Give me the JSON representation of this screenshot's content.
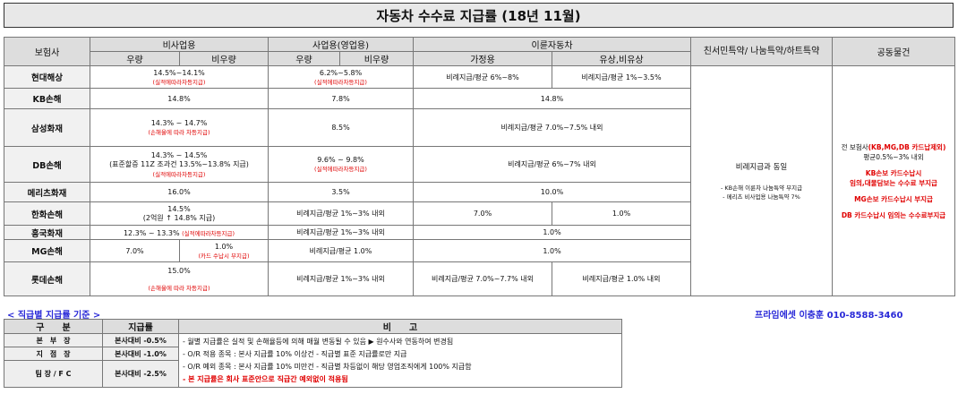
{
  "title": "자동차 수수료 지급률 (18년 11월)",
  "header": {
    "insurer": "보험사",
    "noncommercial": "비사업용",
    "commercial": "사업용(영업용)",
    "twowheel": "이륜자동차",
    "friendly": "친서민특약/ 나눔특약/하트특약",
    "joint": "공동물건",
    "sub": {
      "nc_good": "우량",
      "nc_bad": "비우량",
      "c_good": "우량",
      "c_bad": "비우량",
      "home": "가정용",
      "paid": "유상,비유상"
    }
  },
  "rows": {
    "hyundai": {
      "name": "현대해상",
      "nc": "14.5%~14.1%",
      "nc_note": "(실적에따라차등지급)",
      "c": "6.2%~5.8%",
      "c_note": "(실적에따라차등지급)",
      "home": "비례지급/평균 6%~8%",
      "paid": "비례지급/평균 1%~3.5%"
    },
    "kb": {
      "name": "KB손해",
      "nc": "14.8%",
      "c": "7.8%",
      "tw": "14.8%"
    },
    "samsung": {
      "name": "삼성화재",
      "nc": "14.3% ~ 14.7%",
      "nc_note": "(손해율에 따라 차등지급)",
      "c": "8.5%",
      "tw": "비례지급/평균 7.0%~7.5% 내외"
    },
    "db": {
      "name": "DB손해",
      "nc1": "14.3% ~ 14.5%",
      "nc2": "(표준할증 11Z 조과건 13.5%~13.8% 지급)",
      "nc_note": "(실적에따라차등지급)",
      "c": "9.6% ~ 9.8%",
      "c_note": "(실적에따라차등지급)",
      "tw": "비례지급/평균 6%~7% 내외"
    },
    "meritz": {
      "name": "메리츠화재",
      "nc": "16.0%",
      "c": "3.5%",
      "tw": "10.0%"
    },
    "hanwha": {
      "name": "한화손해",
      "nc1": "14.5%",
      "nc2": "(2억원 ↑ 14.8% 지급)",
      "c": "비례지급/평균 1%~3% 내외",
      "home": "7.0%",
      "paid": "1.0%"
    },
    "heungkuk": {
      "name": "흥국화재",
      "nc": "12.3% ~ 13.3%",
      "nc_note": "(실적에따라차등지급)",
      "c": "비례지급/평균 1%~3% 내외",
      "tw": "1.0%"
    },
    "mg": {
      "name": "MG손해",
      "nc_good": "7.0%",
      "nc_bad": "1.0%",
      "nc_bad_note": "(카드 수납시 부지급)",
      "c": "비례지급/평균 1.0%",
      "tw": "1.0%"
    },
    "lotte": {
      "name": "롯데손해",
      "nc": "15.0%",
      "nc_note": "(손해율에 따라 차등지급)",
      "c": "비례지급/평균 1%~3% 내외",
      "home": "비례지급/평균 7.0%~7.7% 내외",
      "paid": "비례지급/평균 1.0% 내외"
    }
  },
  "friendly_col": {
    "main": "비례지급과 동일",
    "note1": "- KB손해 이륜차 나눔특약 부지급",
    "note2": "- 메리츠 비사업용 나눔특약 7%"
  },
  "joint_col": {
    "line1a": "전 보험사",
    "line1b": "(KB,MG,DB 카드납제외)",
    "line2": "평균0.5%~3% 내외",
    "line3": "KB손보 카드수납시",
    "line4": "임의,대물담보는 수수료 부지급",
    "line5": "MG손보 카드수납시 부지급",
    "line6": "DB 카드수납시 임의는 수수료부지급"
  },
  "legend": {
    "title": "< 직급별 지급률 기준 >",
    "contact": "프라임에셋 이충훈 010-8588-3460",
    "col_grade": "구　　분",
    "col_rate": "지급률",
    "col_note": "비　　고",
    "r1_grade": "본　부　장",
    "r1_rate": "본사대비 -0.5%",
    "r2_grade": "지　점　장",
    "r2_rate": "본사대비 -1.0%",
    "r3_grade": "팀 장 / F C",
    "r3_rate": "본사대비 -2.5%",
    "note1": "- 월별 지급률은 실적 및 손해율등에 의해 매월 변동될 수 있음 ▶ 원수사와 연동하여 변경됨",
    "note2": "- O/R 적용 종목 : 본사 지급률 10% 이상건 - 직급별 표준 지급률로만 지급",
    "note3": "- O/R 예외 종목 : 본사 지급률 10% 미만건 - 직급별 차등없이 해당 영업조직에게 100% 지급함",
    "note4": "- 본 지급률은 회사 표준안으로 직급간 예외없이 적용됨"
  }
}
